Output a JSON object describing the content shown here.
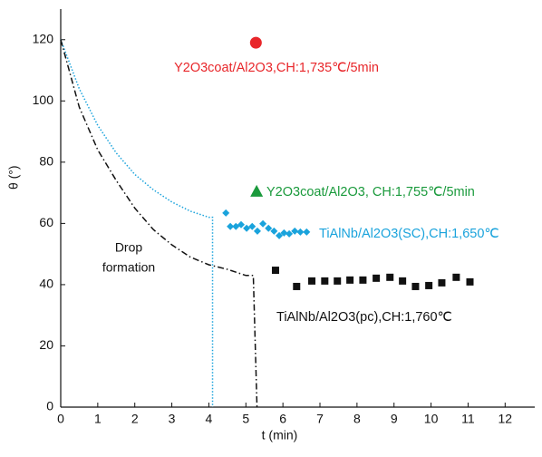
{
  "chart_data": {
    "type": "scatter",
    "x_label": "t (min)",
    "y_label": "θ (°)",
    "xlim": [
      0,
      12.8
    ],
    "ylim": [
      0,
      130
    ],
    "xticks": [
      0,
      1,
      2,
      3,
      4,
      5,
      6,
      7,
      8,
      9,
      10,
      11,
      12
    ],
    "yticks": [
      0,
      20,
      40,
      60,
      80,
      100,
      120
    ],
    "series": [
      {
        "name": "Y2O3coat/Al2O3,CH:1,735℃/5min",
        "color": "#e8262a",
        "marker": "circle",
        "x": [
          5.27
        ],
        "values": [
          119
        ]
      },
      {
        "name": "Y2O3coat/Al2O3, CH:1,755℃/5min",
        "color": "#1a9a3c",
        "marker": "triangle",
        "x": [
          5.29
        ],
        "values": [
          70.5
        ]
      },
      {
        "name": "TiAlNb/Al2O3(SC),CH:1,650℃",
        "color": "#1aa3dc",
        "marker": "diamond",
        "x": [
          4.46,
          4.58,
          4.73,
          4.87,
          5.02,
          5.17,
          5.31,
          5.46,
          5.61,
          5.76,
          5.9,
          6.03,
          6.17,
          6.32,
          6.47,
          6.64
        ],
        "values": [
          63.4,
          59,
          59,
          59.6,
          58.4,
          59,
          57.5,
          59.9,
          58.4,
          57.5,
          56,
          56.9,
          56.6,
          57.5,
          57.2,
          57.2
        ]
      },
      {
        "name": "TiAlNb/Al2O3(pc),CH:1,760℃",
        "color": "#111111",
        "marker": "square",
        "x": [
          5.8,
          6.37,
          6.78,
          7.13,
          7.47,
          7.81,
          8.16,
          8.52,
          8.89,
          9.23,
          9.58,
          9.94,
          10.29,
          10.68,
          11.05
        ],
        "values": [
          44.7,
          39.4,
          41.2,
          41.2,
          41.2,
          41.5,
          41.5,
          42.1,
          42.4,
          41.2,
          39.4,
          39.7,
          40.6,
          42.4,
          40.9
        ]
      }
    ],
    "curves": [
      {
        "color": "#1aa3dc",
        "dash": "dotted",
        "x": [
          0,
          0.5,
          1,
          1.5,
          2,
          2.5,
          3,
          3.5,
          4,
          4.1,
          4.1
        ],
        "values": [
          120,
          104,
          92,
          83,
          76,
          71,
          67,
          64,
          62,
          62,
          0
        ]
      },
      {
        "color": "#111111",
        "dash": "dashdot",
        "x": [
          0,
          0.5,
          1,
          1.5,
          2,
          2.5,
          3,
          3.5,
          4,
          4.5,
          5,
          5.2,
          5.3
        ],
        "values": [
          120,
          98,
          84,
          74,
          65,
          58,
          53,
          49,
          46.5,
          45,
          43,
          43,
          0
        ]
      }
    ],
    "annotation": [
      "Drop",
      "formation"
    ]
  }
}
